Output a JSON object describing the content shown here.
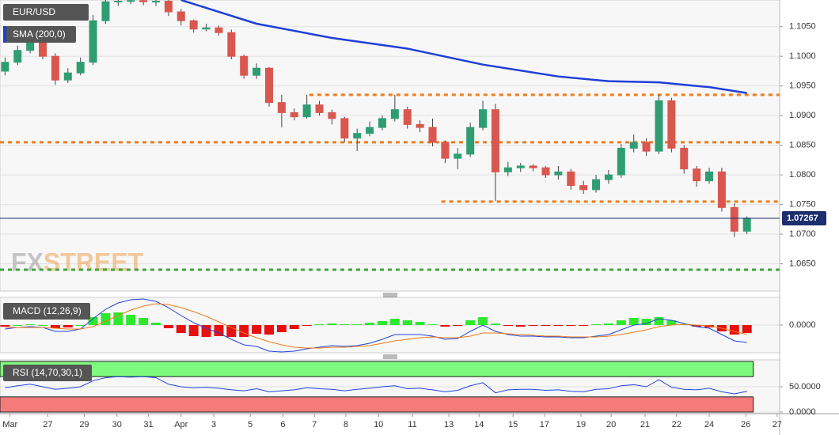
{
  "chart_data": [
    {
      "type": "candlestick",
      "title": "EUR/USD",
      "watermark": "FXSTREET",
      "up_color": "#2e9e72",
      "down_color": "#d9574f",
      "open": [
        1.0975,
        1.099,
        1.101,
        1.1028,
        1.1,
        1.096,
        1.0972,
        1.099,
        1.106,
        1.1092,
        1.1093,
        1.1094,
        1.1092,
        1.1093,
        1.1075,
        1.106,
        1.1046,
        1.1048,
        1.104,
        1.1,
        1.0968,
        1.098,
        1.0922,
        1.0905,
        1.0898,
        1.0918,
        1.0905,
        1.0895,
        1.0862,
        1.087,
        1.088,
        1.0895,
        1.091,
        1.0885,
        1.088,
        1.0855,
        1.0828,
        1.0835,
        1.088,
        1.091,
        1.0805,
        1.0812,
        1.0815,
        1.0812,
        1.08,
        1.0805,
        1.0782,
        1.0775,
        1.0792,
        1.08,
        1.0845,
        1.0855,
        1.084,
        1.0925,
        1.0845,
        1.081,
        1.079,
        1.0805,
        1.0745,
        1.0705
      ],
      "high": [
        1.0998,
        1.1018,
        1.1035,
        1.1032,
        1.1005,
        1.098,
        1.0998,
        1.107,
        1.1095,
        1.1095,
        1.1095,
        1.1095,
        1.1095,
        1.1095,
        1.108,
        1.1062,
        1.1055,
        1.1052,
        1.1045,
        1.1003,
        1.0988,
        1.0982,
        1.0935,
        1.0912,
        1.0935,
        1.0925,
        1.091,
        1.0898,
        1.0878,
        1.089,
        1.09,
        1.0935,
        1.0915,
        1.0892,
        1.0895,
        1.0858,
        1.0845,
        1.0888,
        1.0925,
        1.092,
        1.0822,
        1.082,
        1.0818,
        1.0815,
        1.0815,
        1.081,
        1.079,
        1.08,
        1.0808,
        1.0852,
        1.0868,
        1.0862,
        1.0935,
        1.093,
        1.085,
        1.0815,
        1.0812,
        1.0812,
        1.0752,
        1.073
      ],
      "low": [
        1.0968,
        1.0985,
        1.1005,
        1.0995,
        1.0952,
        1.0955,
        1.0968,
        1.0985,
        1.1055,
        1.1085,
        1.1088,
        1.1086,
        1.1085,
        1.1068,
        1.1052,
        1.104,
        1.1042,
        1.1035,
        1.0995,
        1.0962,
        1.0962,
        1.0915,
        1.088,
        1.0892,
        1.0895,
        1.09,
        1.0885,
        1.0855,
        1.084,
        1.0865,
        1.0875,
        1.089,
        1.0878,
        1.0872,
        1.0848,
        1.082,
        1.081,
        1.083,
        1.0875,
        1.0756,
        1.0798,
        1.0805,
        1.0806,
        1.0795,
        1.0792,
        1.0775,
        1.0768,
        1.077,
        1.0785,
        1.0795,
        1.0838,
        1.0832,
        1.0835,
        1.0838,
        1.0802,
        1.078,
        1.0785,
        1.0738,
        1.0695,
        1.07
      ],
      "close": [
        1.099,
        1.101,
        1.1028,
        1.1,
        1.096,
        1.0972,
        1.099,
        1.106,
        1.1092,
        1.1093,
        1.1094,
        1.1092,
        1.1093,
        1.1075,
        1.106,
        1.1046,
        1.1048,
        1.104,
        1.1,
        1.0968,
        1.098,
        1.0922,
        1.0905,
        1.0898,
        1.0918,
        1.0905,
        1.0895,
        1.0862,
        1.087,
        1.088,
        1.0895,
        1.091,
        1.0885,
        1.088,
        1.0855,
        1.0828,
        1.0835,
        1.088,
        1.091,
        1.0805,
        1.0812,
        1.0815,
        1.0812,
        1.08,
        1.0805,
        1.0782,
        1.0775,
        1.0792,
        1.08,
        1.0845,
        1.0855,
        1.084,
        1.0925,
        1.0845,
        1.081,
        1.079,
        1.0805,
        1.0745,
        1.0705,
        1.0727
      ],
      "series": [
        {
          "name": "SMA (200,0)",
          "color": "#1f3fd6",
          "x": [
            14,
            20,
            26,
            32,
            38,
            44,
            48,
            52,
            56,
            59
          ],
          "values": [
            1.1095,
            1.1055,
            1.1031,
            1.1013,
            1.0986,
            1.0966,
            1.0958,
            1.0956,
            1.0948,
            1.0938
          ]
        }
      ],
      "levels": [
        {
          "value": 1.0935,
          "from": 24.2,
          "color": "#f07d1a"
        },
        {
          "value": 1.0855,
          "from": -0.4,
          "color": "#f07d1a"
        },
        {
          "value": 1.0755,
          "from": 34.7,
          "color": "#f07d1a"
        },
        {
          "value": 1.064,
          "from": -0.4,
          "color": "#3aa83a"
        }
      ],
      "last_price": 1.07267,
      "last_color": "#1c2e6e",
      "ylim": [
        1.0604,
        1.1095
      ],
      "yticks": [
        {
          "value": 1.065,
          "label": "1.0650"
        },
        {
          "value": 1.07,
          "label": "1.0700"
        },
        {
          "value": 1.075,
          "label": "1.0750"
        },
        {
          "value": 1.08,
          "label": "1.0800"
        },
        {
          "value": 1.085,
          "label": "1.0850"
        },
        {
          "value": 1.09,
          "label": "1.0900"
        },
        {
          "value": 1.095,
          "label": "1.0950"
        },
        {
          "value": 1.1,
          "label": "1.1000"
        },
        {
          "value": 1.105,
          "label": "1.1050"
        }
      ],
      "xlim": [
        -0.4,
        61.6
      ],
      "xticks": [
        {
          "value": 0.4,
          "label": "Mar"
        },
        {
          "value": 3.4,
          "label": "27"
        },
        {
          "value": 6.3,
          "label": "29"
        },
        {
          "value": 8.9,
          "label": "30"
        },
        {
          "value": 11.4,
          "label": "31"
        },
        {
          "value": 14.0,
          "label": "Apr"
        },
        {
          "value": 16.6,
          "label": "3"
        },
        {
          "value": 19.5,
          "label": "5"
        },
        {
          "value": 22.1,
          "label": "6"
        },
        {
          "value": 24.6,
          "label": "7"
        },
        {
          "value": 27.1,
          "label": "8"
        },
        {
          "value": 29.7,
          "label": "10"
        },
        {
          "value": 32.4,
          "label": "11"
        },
        {
          "value": 35.3,
          "label": "13"
        },
        {
          "value": 37.7,
          "label": "14"
        },
        {
          "value": 40.4,
          "label": "15"
        },
        {
          "value": 42.9,
          "label": "17"
        },
        {
          "value": 45.8,
          "label": "19"
        },
        {
          "value": 48.2,
          "label": "20"
        },
        {
          "value": 50.9,
          "label": "21"
        },
        {
          "value": 53.4,
          "label": "22"
        },
        {
          "value": 56.0,
          "label": "24"
        },
        {
          "value": 58.9,
          "label": "26"
        },
        {
          "value": 61.4,
          "label": "27"
        }
      ]
    },
    {
      "type": "macd",
      "title": "MACD (12,26,9)",
      "macd_color": "#2244dd",
      "signal_color": "#f07d1a",
      "up_color": "#2ee82e",
      "down_color": "#e61010",
      "macd": [
        -0.0005,
        -0.0003,
        -0.0002,
        -0.0003,
        -0.0008,
        -0.0008,
        -0.0005,
        0.0008,
        0.002,
        0.0028,
        0.0032,
        0.0033,
        0.003,
        0.0022,
        0.0012,
        0.0003,
        -0.0004,
        -0.001,
        -0.0018,
        -0.0025,
        -0.0027,
        -0.0033,
        -0.0034,
        -0.0033,
        -0.003,
        -0.0028,
        -0.0026,
        -0.0027,
        -0.0026,
        -0.0023,
        -0.0018,
        -0.0012,
        -0.0012,
        -0.0012,
        -0.0014,
        -0.0018,
        -0.0017,
        -0.0008,
        0.0,
        -0.0008,
        -0.0012,
        -0.0014,
        -0.0014,
        -0.0015,
        -0.0015,
        -0.0016,
        -0.0016,
        -0.0014,
        -0.0012,
        -0.0006,
        0.0,
        0.0002,
        0.0008,
        0.0006,
        0.0002,
        -0.0002,
        -0.0004,
        -0.0012,
        -0.002,
        -0.0022
      ],
      "signal": [
        -0.0003,
        -0.0003,
        -0.0003,
        -0.0003,
        -0.0004,
        -0.0005,
        -0.0005,
        -0.0002,
        0.0005,
        0.0012,
        0.0019,
        0.0024,
        0.0027,
        0.0026,
        0.0022,
        0.0017,
        0.0011,
        0.0004,
        -0.0003,
        -0.001,
        -0.0016,
        -0.0021,
        -0.0025,
        -0.0028,
        -0.0029,
        -0.0029,
        -0.0028,
        -0.0028,
        -0.0027,
        -0.0026,
        -0.0023,
        -0.002,
        -0.0018,
        -0.0016,
        -0.0015,
        -0.0016,
        -0.0016,
        -0.0014,
        -0.001,
        -0.001,
        -0.0011,
        -0.0012,
        -0.0013,
        -0.0014,
        -0.0014,
        -0.0015,
        -0.0015,
        -0.0015,
        -0.0014,
        -0.0012,
        -0.0009,
        -0.0006,
        -0.0002,
        0.0,
        0.0001,
        0.0,
        -0.0001,
        -0.0004,
        -0.0008,
        -0.0012
      ],
      "histogram": [
        -0.0002,
        0,
        0.0001,
        0,
        -0.0004,
        -0.0003,
        0,
        0.001,
        0.0015,
        0.0016,
        0.0013,
        0.0009,
        0.0003,
        -0.0004,
        -0.001,
        -0.0014,
        -0.0015,
        -0.0014,
        -0.0015,
        -0.0015,
        -0.0011,
        -0.0012,
        -0.0009,
        -0.0005,
        -0.0001,
        0.0001,
        0.0002,
        0.0001,
        0.0001,
        0.0003,
        0.0005,
        0.0008,
        0.0006,
        0.0004,
        0.0001,
        -0.0002,
        -0.0001,
        0.0006,
        0.001,
        0.0002,
        -0.0001,
        -0.0002,
        -0.0001,
        -0.0001,
        -0.0001,
        -0.0001,
        -0.0001,
        0.0001,
        0.0002,
        0.0006,
        0.0009,
        0.0008,
        0.001,
        0.0006,
        0.0001,
        -0.0002,
        -0.0003,
        -0.0008,
        -0.0012,
        -0.001
      ],
      "ylim": [
        -0.0035,
        0.0035
      ],
      "yticks": [
        {
          "value": 0,
          "label": "0.0000"
        }
      ]
    },
    {
      "type": "rsi",
      "title": "RSI (14,70,30,1)",
      "color": "#2244dd",
      "overbought": 70,
      "oversold": 30,
      "overbought_color": "#7dfa7d",
      "oversold_color": "#f57b7b",
      "values": [
        48,
        52,
        55,
        50,
        45,
        47,
        50,
        62,
        68,
        70,
        69,
        70,
        68,
        55,
        50,
        48,
        49,
        47,
        44,
        42,
        46,
        40,
        42,
        44,
        48,
        46,
        45,
        42,
        45,
        47,
        50,
        52,
        46,
        47,
        44,
        40,
        43,
        52,
        58,
        38,
        44,
        45,
        45,
        43,
        44,
        41,
        40,
        45,
        46,
        52,
        54,
        50,
        64,
        49,
        45,
        44,
        47,
        40,
        36,
        41
      ],
      "ylim": [
        0,
        100
      ],
      "yticks": [
        {
          "value": 0,
          "label": "0.0000"
        },
        {
          "value": 50,
          "label": "50.0000"
        }
      ]
    }
  ]
}
